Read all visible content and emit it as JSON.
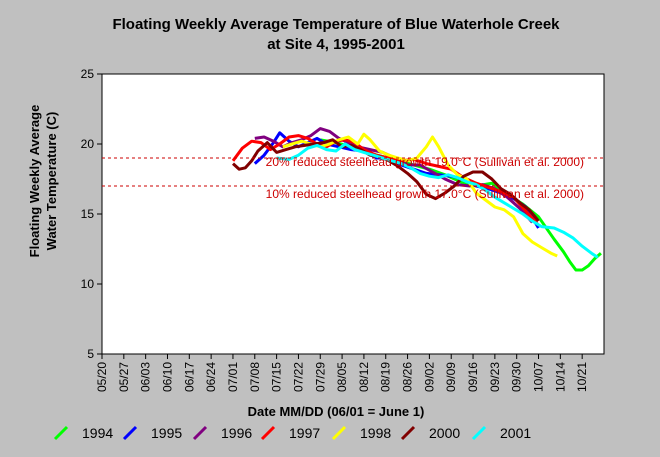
{
  "chart_data": {
    "type": "line",
    "title": [
      "Floating Weekly Average Temperature of Blue Waterhole Creek",
      "at Site 4, 1995-2001"
    ],
    "ylabel": [
      "Floating Weekly Average",
      "Water Temperature (C)"
    ],
    "xlabel": "Date MM/DD (06/01 = June 1)",
    "ylim": [
      5,
      25
    ],
    "yticks": [
      5,
      10,
      15,
      20,
      25
    ],
    "xlim": [
      0,
      161
    ],
    "xticks": [
      {
        "label": "05/20",
        "day": 0
      },
      {
        "label": "05/27",
        "day": 7
      },
      {
        "label": "06/03",
        "day": 14
      },
      {
        "label": "06/10",
        "day": 21
      },
      {
        "label": "06/17",
        "day": 28
      },
      {
        "label": "06/24",
        "day": 35
      },
      {
        "label": "07/01",
        "day": 42
      },
      {
        "label": "07/08",
        "day": 49
      },
      {
        "label": "07/15",
        "day": 56
      },
      {
        "label": "07/22",
        "day": 63
      },
      {
        "label": "07/29",
        "day": 70
      },
      {
        "label": "08/05",
        "day": 77
      },
      {
        "label": "08/12",
        "day": 84
      },
      {
        "label": "08/19",
        "day": 91
      },
      {
        "label": "08/26",
        "day": 98
      },
      {
        "label": "09/02",
        "day": 105
      },
      {
        "label": "09/09",
        "day": 112
      },
      {
        "label": "09/16",
        "day": 119
      },
      {
        "label": "09/23",
        "day": 126
      },
      {
        "label": "09/30",
        "day": 133
      },
      {
        "label": "10/07",
        "day": 140
      },
      {
        "label": "10/14",
        "day": 147
      },
      {
        "label": "10/21",
        "day": 154
      }
    ],
    "grid": false,
    "legend_position": "bottom",
    "reference_lines": [
      {
        "label": "20% reduced steelhead growth 19.0°C (Sullivan et al. 2000)",
        "y": 19.0,
        "color": "#cc0000"
      },
      {
        "label": "10% reduced steelhead growth 17.0°C (Sullivan et al. 2000)",
        "y": 17.0,
        "color": "#cc0000"
      }
    ],
    "series": [
      {
        "name": "1994",
        "color": "#00ff00",
        "points": [
          [
            70,
            20.3
          ],
          [
            75,
            20.1
          ],
          [
            80,
            19.8
          ],
          [
            85,
            19.4
          ],
          [
            90,
            19.1
          ],
          [
            95,
            18.8
          ],
          [
            100,
            18.5
          ],
          [
            105,
            18.2
          ],
          [
            110,
            17.8
          ],
          [
            115,
            17.3
          ],
          [
            120,
            17.0
          ],
          [
            125,
            17.2
          ],
          [
            130,
            16.4
          ],
          [
            135,
            15.7
          ],
          [
            140,
            14.8
          ],
          [
            145,
            13.2
          ],
          [
            148,
            12.3
          ],
          [
            150,
            11.6
          ],
          [
            152,
            11.0
          ],
          [
            154,
            11.0
          ],
          [
            156,
            11.3
          ],
          [
            158,
            11.8
          ],
          [
            160,
            12.2
          ]
        ]
      },
      {
        "name": "1995",
        "color": "#0000ff",
        "points": [
          [
            49,
            18.6
          ],
          [
            52,
            19.2
          ],
          [
            55,
            20.1
          ],
          [
            57,
            20.8
          ],
          [
            60,
            20.2
          ],
          [
            63,
            19.8
          ],
          [
            66,
            20.1
          ],
          [
            69,
            20.4
          ],
          [
            72,
            20.0
          ],
          [
            76,
            19.8
          ],
          [
            80,
            19.6
          ],
          [
            84,
            19.5
          ],
          [
            88,
            19.0
          ],
          [
            92,
            19.0
          ],
          [
            96,
            18.5
          ],
          [
            100,
            18.2
          ],
          [
            104,
            17.9
          ],
          [
            108,
            17.8
          ],
          [
            112,
            17.7
          ],
          [
            116,
            17.5
          ],
          [
            120,
            17.0
          ],
          [
            124,
            16.8
          ],
          [
            128,
            16.5
          ],
          [
            132,
            16.1
          ],
          [
            136,
            15.5
          ],
          [
            140,
            14.0
          ]
        ]
      },
      {
        "name": "1996",
        "color": "#800080",
        "points": [
          [
            49,
            20.4
          ],
          [
            52,
            20.5
          ],
          [
            55,
            20.2
          ],
          [
            58,
            19.8
          ],
          [
            61,
            20.1
          ],
          [
            64,
            20.3
          ],
          [
            67,
            20.6
          ],
          [
            70,
            21.1
          ],
          [
            73,
            20.9
          ],
          [
            76,
            20.4
          ],
          [
            79,
            20.1
          ],
          [
            82,
            19.8
          ],
          [
            86,
            19.6
          ],
          [
            90,
            19.4
          ],
          [
            94,
            19.0
          ],
          [
            98,
            18.5
          ],
          [
            102,
            18.5
          ],
          [
            106,
            18.0
          ],
          [
            110,
            17.5
          ],
          [
            114,
            17.1
          ],
          [
            118,
            17.0
          ],
          [
            122,
            17.1
          ],
          [
            126,
            16.8
          ],
          [
            130,
            16.2
          ],
          [
            134,
            15.4
          ],
          [
            138,
            14.4
          ]
        ]
      },
      {
        "name": "1997",
        "color": "#ff0000",
        "points": [
          [
            42,
            18.8
          ],
          [
            45,
            19.7
          ],
          [
            48,
            20.2
          ],
          [
            51,
            20.1
          ],
          [
            54,
            19.6
          ],
          [
            57,
            20.0
          ],
          [
            60,
            20.5
          ],
          [
            63,
            20.6
          ],
          [
            66,
            20.4
          ],
          [
            69,
            20.0
          ],
          [
            72,
            19.8
          ],
          [
            75,
            20.2
          ],
          [
            78,
            20.3
          ],
          [
            81,
            20.1
          ],
          [
            84,
            19.6
          ],
          [
            88,
            19.2
          ],
          [
            92,
            19.0
          ],
          [
            96,
            18.8
          ],
          [
            100,
            18.9
          ],
          [
            104,
            18.6
          ],
          [
            108,
            18.4
          ],
          [
            112,
            18.2
          ],
          [
            116,
            17.6
          ],
          [
            120,
            17.2
          ],
          [
            124,
            16.9
          ],
          [
            128,
            16.6
          ],
          [
            132,
            16.2
          ],
          [
            136,
            15.2
          ],
          [
            140,
            14.2
          ]
        ]
      },
      {
        "name": "1998",
        "color": "#ffff00",
        "points": [
          [
            58,
            19.8
          ],
          [
            61,
            20.0
          ],
          [
            64,
            20.2
          ],
          [
            67,
            20.0
          ],
          [
            70,
            19.8
          ],
          [
            73,
            20.0
          ],
          [
            76,
            20.3
          ],
          [
            79,
            20.5
          ],
          [
            82,
            20.0
          ],
          [
            84,
            20.7
          ],
          [
            86,
            20.3
          ],
          [
            89,
            19.5
          ],
          [
            92,
            19.2
          ],
          [
            95,
            19.0
          ],
          [
            98,
            18.8
          ],
          [
            101,
            19.0
          ],
          [
            104,
            19.8
          ],
          [
            106,
            20.5
          ],
          [
            108,
            19.8
          ],
          [
            111,
            18.5
          ],
          [
            114,
            17.8
          ],
          [
            117,
            17.5
          ],
          [
            120,
            16.5
          ],
          [
            123,
            16.0
          ],
          [
            126,
            15.5
          ],
          [
            129,
            15.3
          ],
          [
            132,
            14.8
          ],
          [
            135,
            13.6
          ],
          [
            138,
            13.0
          ],
          [
            141,
            12.6
          ],
          [
            144,
            12.2
          ],
          [
            146,
            12.0
          ]
        ]
      },
      {
        "name": "2000",
        "color": "#800000",
        "points": [
          [
            42,
            18.6
          ],
          [
            44,
            18.2
          ],
          [
            46,
            18.3
          ],
          [
            48,
            18.8
          ],
          [
            50,
            19.5
          ],
          [
            53,
            20.1
          ],
          [
            56,
            19.4
          ],
          [
            59,
            19.6
          ],
          [
            62,
            19.8
          ],
          [
            65,
            19.9
          ],
          [
            68,
            20.0
          ],
          [
            71,
            20.1
          ],
          [
            74,
            20.3
          ],
          [
            77,
            19.8
          ],
          [
            80,
            19.9
          ],
          [
            83,
            19.6
          ],
          [
            86,
            19.2
          ],
          [
            89,
            19.1
          ],
          [
            92,
            18.8
          ],
          [
            95,
            18.4
          ],
          [
            98,
            17.9
          ],
          [
            101,
            17.3
          ],
          [
            104,
            16.4
          ],
          [
            107,
            16.1
          ],
          [
            110,
            16.5
          ],
          [
            113,
            17.0
          ],
          [
            116,
            17.7
          ],
          [
            119,
            18.0
          ],
          [
            122,
            18.0
          ],
          [
            125,
            17.5
          ],
          [
            128,
            16.8
          ],
          [
            131,
            16.4
          ],
          [
            134,
            15.8
          ],
          [
            137,
            15.3
          ],
          [
            140,
            14.5
          ]
        ]
      },
      {
        "name": "2001",
        "color": "#00ffff",
        "points": [
          [
            56,
            19.0
          ],
          [
            60,
            18.9
          ],
          [
            63,
            19.2
          ],
          [
            66,
            19.7
          ],
          [
            69,
            19.9
          ],
          [
            72,
            19.6
          ],
          [
            75,
            19.5
          ],
          [
            78,
            20.0
          ],
          [
            81,
            19.6
          ],
          [
            84,
            19.4
          ],
          [
            87,
            19.2
          ],
          [
            90,
            19.0
          ],
          [
            93,
            18.8
          ],
          [
            96,
            18.6
          ],
          [
            99,
            18.3
          ],
          [
            102,
            17.9
          ],
          [
            105,
            17.7
          ],
          [
            108,
            17.6
          ],
          [
            111,
            17.8
          ],
          [
            114,
            17.6
          ],
          [
            117,
            17.3
          ],
          [
            120,
            17.1
          ],
          [
            123,
            16.7
          ],
          [
            126,
            16.2
          ],
          [
            129,
            15.8
          ],
          [
            132,
            15.4
          ],
          [
            135,
            15.0
          ],
          [
            138,
            14.5
          ],
          [
            141,
            14.1
          ],
          [
            145,
            14.0
          ],
          [
            148,
            13.7
          ],
          [
            151,
            13.3
          ],
          [
            154,
            12.7
          ],
          [
            157,
            12.2
          ],
          [
            159,
            11.9
          ]
        ]
      }
    ]
  }
}
